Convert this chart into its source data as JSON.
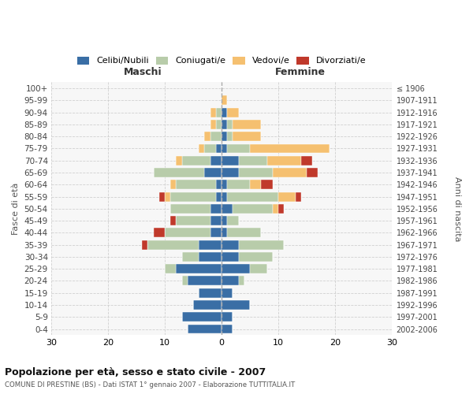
{
  "age_groups": [
    "100+",
    "95-99",
    "90-94",
    "85-89",
    "80-84",
    "75-79",
    "70-74",
    "65-69",
    "60-64",
    "55-59",
    "50-54",
    "45-49",
    "40-44",
    "35-39",
    "30-34",
    "25-29",
    "20-24",
    "15-19",
    "10-14",
    "5-9",
    "0-4"
  ],
  "birth_years": [
    "≤ 1906",
    "1907-1911",
    "1912-1916",
    "1917-1921",
    "1922-1926",
    "1927-1931",
    "1932-1936",
    "1937-1941",
    "1942-1946",
    "1947-1951",
    "1952-1956",
    "1957-1961",
    "1962-1966",
    "1967-1971",
    "1972-1976",
    "1977-1981",
    "1982-1986",
    "1987-1991",
    "1992-1996",
    "1997-2001",
    "2002-2006"
  ],
  "males": {
    "celibi": [
      0,
      0,
      0,
      0,
      0,
      1,
      2,
      3,
      1,
      1,
      2,
      2,
      2,
      4,
      4,
      8,
      6,
      4,
      5,
      7,
      6
    ],
    "coniugati": [
      0,
      0,
      1,
      1,
      2,
      2,
      5,
      9,
      7,
      8,
      7,
      6,
      8,
      9,
      3,
      2,
      1,
      0,
      0,
      0,
      0
    ],
    "vedovi": [
      0,
      0,
      1,
      1,
      1,
      1,
      1,
      0,
      1,
      1,
      0,
      0,
      0,
      0,
      0,
      0,
      0,
      0,
      0,
      0,
      0
    ],
    "divorziati": [
      0,
      0,
      0,
      0,
      0,
      0,
      0,
      0,
      0,
      1,
      0,
      1,
      2,
      1,
      0,
      0,
      0,
      0,
      0,
      0,
      0
    ]
  },
  "females": {
    "nubili": [
      0,
      0,
      1,
      1,
      1,
      1,
      3,
      3,
      1,
      1,
      2,
      1,
      1,
      3,
      3,
      5,
      3,
      2,
      5,
      2,
      2
    ],
    "coniugate": [
      0,
      0,
      0,
      1,
      1,
      4,
      5,
      6,
      4,
      9,
      7,
      2,
      6,
      8,
      6,
      3,
      1,
      0,
      0,
      0,
      0
    ],
    "vedove": [
      0,
      1,
      2,
      5,
      5,
      14,
      6,
      6,
      2,
      3,
      1,
      0,
      0,
      0,
      0,
      0,
      0,
      0,
      0,
      0,
      0
    ],
    "divorziate": [
      0,
      0,
      0,
      0,
      0,
      0,
      2,
      2,
      2,
      1,
      1,
      0,
      0,
      0,
      0,
      0,
      0,
      0,
      0,
      0,
      0
    ]
  },
  "colors": {
    "celibi": "#3A6EA5",
    "coniugati": "#B8CCAA",
    "vedovi": "#F5C070",
    "divorziati": "#C0392B"
  },
  "legend_labels": [
    "Celibi/Nubili",
    "Coniugati/e",
    "Vedovi/e",
    "Divorziati/e"
  ],
  "title": "Popolazione per età, sesso e stato civile - 2007",
  "subtitle": "COMUNE DI PRESTINE (BS) - Dati ISTAT 1° gennaio 2007 - Elaborazione TUTTITALIA.IT",
  "ylabel_left": "Fasce di età",
  "ylabel_right": "Anni di nascita",
  "xlabel_left": "Maschi",
  "xlabel_right": "Femmine",
  "xlim": 30
}
